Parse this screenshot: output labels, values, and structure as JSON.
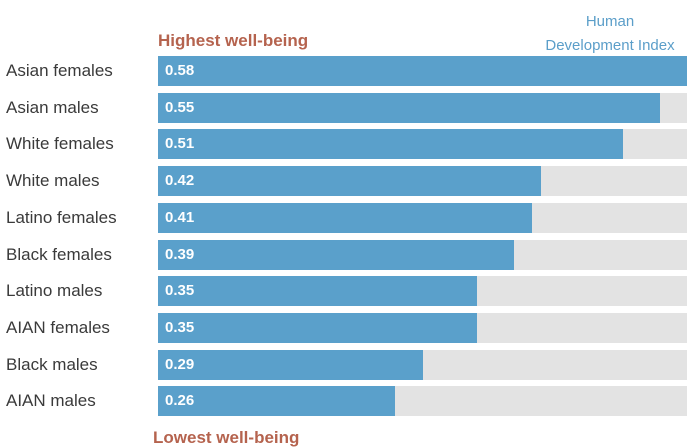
{
  "chart_data": {
    "type": "bar",
    "orientation": "horizontal",
    "categories": [
      "Asian females",
      "Asian males",
      "White females",
      "White males",
      "Latino females",
      "Black females",
      "Latino males",
      "AIAN females",
      "Black males",
      "AIAN males"
    ],
    "values": [
      0.58,
      0.55,
      0.51,
      0.42,
      0.41,
      0.39,
      0.35,
      0.35,
      0.29,
      0.26
    ],
    "value_labels": [
      "0.58",
      "0.55",
      "0.51",
      "0.42",
      "0.41",
      "0.39",
      "0.35",
      "0.35",
      "0.29",
      "0.26"
    ],
    "xlim": [
      0,
      0.58
    ],
    "legend": "Human Development Index",
    "legend_lines": [
      "Human",
      "Development Index"
    ],
    "annotation_top": "Highest well-being",
    "annotation_bottom": "Lowest well-being",
    "grid": false,
    "colors": {
      "bar": "#5aa0cb",
      "track": "#e3e3e3",
      "annotation": "#b5634e",
      "legend": "#5b9ec9"
    }
  }
}
